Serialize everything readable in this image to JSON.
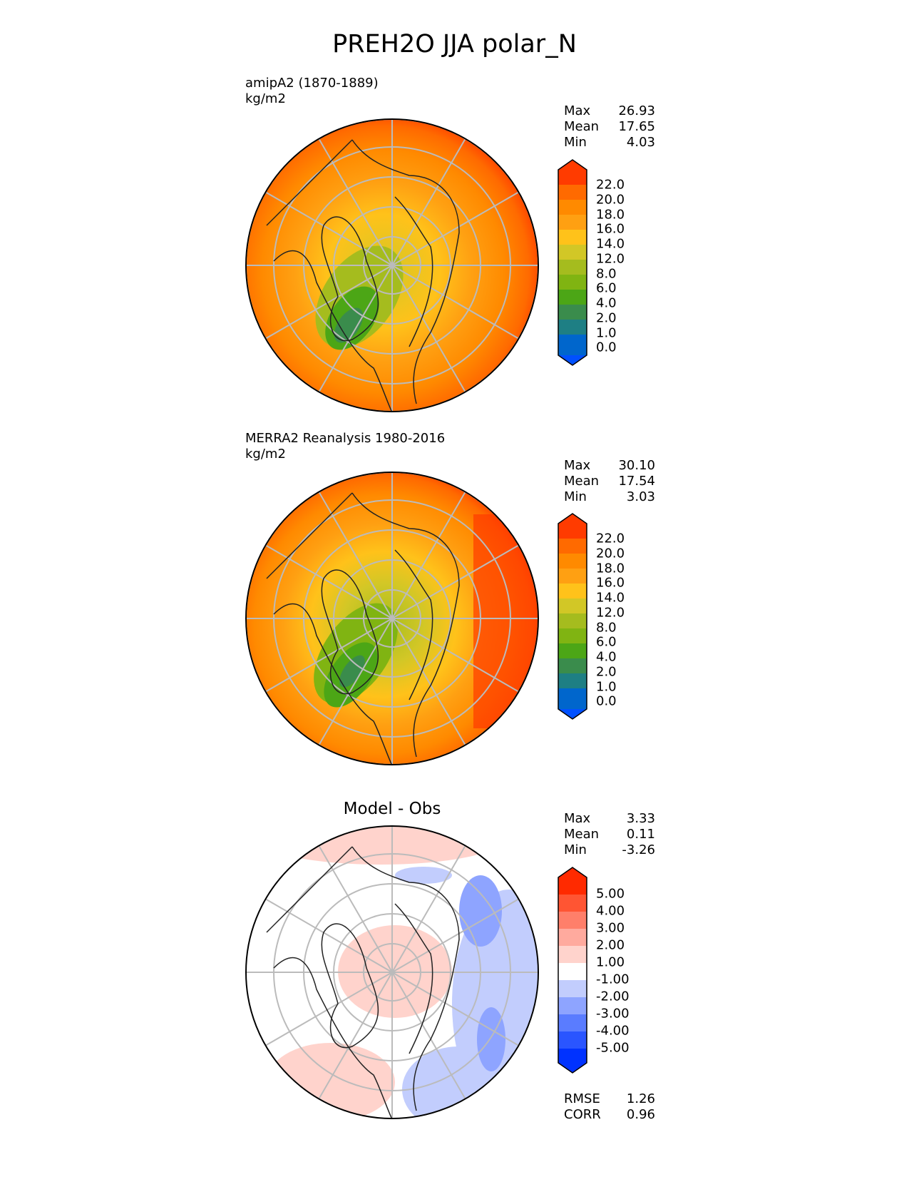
{
  "title": "PREH2O JJA polar_N",
  "panels": [
    {
      "label": "amipA2 (1870-1889)",
      "units": "kg/m2",
      "stats": [
        [
          "Max",
          "26.93"
        ],
        [
          "Mean",
          "17.65"
        ],
        [
          "Min",
          "4.03"
        ]
      ],
      "colorbar_ticks": [
        "22.0",
        "20.0",
        "18.0",
        "16.0",
        "14.0",
        "12.0",
        "8.0",
        "6.0",
        "4.0",
        "2.0",
        "1.0",
        "0.0"
      ]
    },
    {
      "label": "MERRA2 Reanalysis 1980-2016",
      "units": "kg/m2",
      "stats": [
        [
          "Max",
          "30.10"
        ],
        [
          "Mean",
          "17.54"
        ],
        [
          "Min",
          "3.03"
        ]
      ],
      "colorbar_ticks": [
        "22.0",
        "20.0",
        "18.0",
        "16.0",
        "14.0",
        "12.0",
        "8.0",
        "6.0",
        "4.0",
        "2.0",
        "1.0",
        "0.0"
      ]
    },
    {
      "title": "Model - Obs",
      "stats": [
        [
          "Max",
          "3.33"
        ],
        [
          "Mean",
          "0.11"
        ],
        [
          "Min",
          "-3.26"
        ]
      ],
      "colorbar_ticks": [
        "5.00",
        "4.00",
        "3.00",
        "2.00",
        "1.00",
        "-1.00",
        "-2.00",
        "-3.00",
        "-4.00",
        "-5.00"
      ],
      "metrics": [
        [
          "RMSE",
          "1.26"
        ],
        [
          "CORR",
          "0.96"
        ]
      ]
    }
  ],
  "colors": {
    "field_scale": [
      "#0050ff",
      "#0066cc",
      "#1e7f84",
      "#3a8c4c",
      "#4ca616",
      "#80b412",
      "#a5bc1e",
      "#d2c726",
      "#ffc21a",
      "#ffa012",
      "#ff8a00",
      "#ff6a00",
      "#ff3b00"
    ],
    "diff_scale": [
      "#0032ff",
      "#2a55ff",
      "#5a7cff",
      "#8ea4ff",
      "#c2cdfd",
      "#ffffff",
      "#ffd3cc",
      "#ffaa9e",
      "#ff7f6a",
      "#ff5533",
      "#ff2a00"
    ]
  }
}
